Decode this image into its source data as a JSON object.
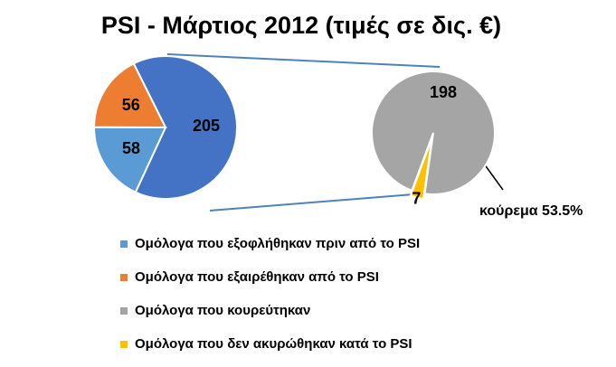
{
  "chart_data": {
    "type": "pie-of-pie",
    "title": "PSI - Μάρτιος 2012 (τιμές σε δις. €)",
    "primary": {
      "values": [
        205,
        58,
        56
      ],
      "colors": [
        "#4472c4",
        "#5b9bd5",
        "#ed7d31"
      ]
    },
    "secondary": {
      "values": [
        198,
        7
      ],
      "colors": [
        "#a5a5a5",
        "#ffc000"
      ]
    },
    "legend": [
      {
        "name": "Ομόλογα που εξοφλήθηκαν πριν από το PSI",
        "color": "#5b9bd5"
      },
      {
        "name": "Ομόλογα που εξαιρέθηκαν από το PSI",
        "color": "#ed7d31"
      },
      {
        "name": "Ομόλογα που κουρεύτηκαν",
        "color": "#a5a5a5"
      },
      {
        "name": "Ομόλογα που δεν ακυρώθηκαν κατά το PSI",
        "color": "#ffc000"
      }
    ],
    "annotation": "κούρεμα 53.5%"
  }
}
